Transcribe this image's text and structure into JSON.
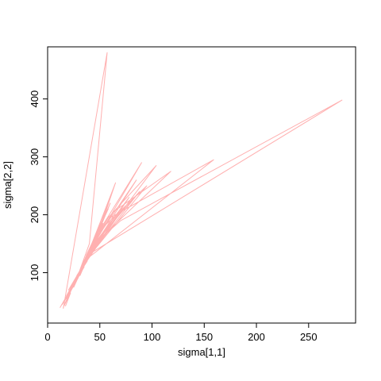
{
  "chart_data": {
    "type": "line",
    "xlabel": "sigma[1,1]",
    "ylabel": "sigma[2,2]",
    "xlim": [
      0,
      295
    ],
    "ylim": [
      13,
      490
    ],
    "xticks": [
      0,
      50,
      100,
      150,
      200,
      250
    ],
    "yticks": [
      100,
      200,
      300,
      400
    ],
    "grid": false,
    "series_color": "#ffb0b0",
    "series": [
      {
        "x": [
          15,
          57,
          40,
          28,
          35,
          45,
          30,
          52,
          38,
          22,
          33,
          60,
          42,
          27,
          48,
          36,
          55,
          31,
          44,
          25,
          39,
          62,
          47,
          20,
          34,
          53,
          41,
          29,
          46,
          37,
          58,
          32,
          50,
          43,
          26,
          36,
          65,
          49,
          30,
          41,
          38,
          282,
          70,
          45,
          52,
          35,
          159,
          60,
          44,
          38,
          90,
          47,
          55,
          33,
          104,
          58,
          42,
          118,
          63,
          48,
          39,
          85,
          51,
          36,
          95,
          54,
          45,
          30,
          78,
          49,
          37,
          66,
          42,
          55,
          28,
          72,
          46,
          40,
          88,
          52,
          35,
          60,
          43,
          31,
          47,
          38,
          20,
          42,
          33,
          27,
          45,
          36,
          25,
          40,
          30,
          18,
          35,
          28,
          44,
          32,
          22,
          38,
          29,
          16,
          36,
          27,
          41,
          24,
          33,
          20,
          30,
          14,
          26,
          34,
          19,
          28,
          12,
          23,
          31,
          17,
          25,
          35,
          21,
          29,
          18,
          24,
          16,
          20,
          15,
          22,
          17
        ],
        "y": [
          38,
          480,
          150,
          90,
          120,
          160,
          100,
          190,
          130,
          70,
          110,
          220,
          140,
          85,
          170,
          125,
          200,
          95,
          150,
          75,
          135,
          240,
          165,
          60,
          115,
          185,
          145,
          90,
          160,
          130,
          210,
          105,
          175,
          150,
          80,
          120,
          255,
          170,
          100,
          140,
          130,
          398,
          190,
          150,
          175,
          120,
          295,
          195,
          150,
          130,
          290,
          165,
          185,
          115,
          285,
          195,
          145,
          275,
          205,
          160,
          130,
          260,
          170,
          120,
          250,
          180,
          150,
          100,
          230,
          160,
          125,
          200,
          140,
          175,
          95,
          210,
          150,
          130,
          240,
          165,
          115,
          185,
          140,
          105,
          150,
          125,
          70,
          135,
          110,
          90,
          145,
          115,
          80,
          130,
          100,
          60,
          115,
          95,
          140,
          105,
          75,
          120,
          95,
          50,
          115,
          90,
          130,
          80,
          105,
          65,
          95,
          45,
          85,
          110,
          60,
          90,
          40,
          75,
          100,
          55,
          80,
          110,
          65,
          90,
          55,
          75,
          45,
          60,
          40,
          65,
          42
        ]
      }
    ]
  }
}
